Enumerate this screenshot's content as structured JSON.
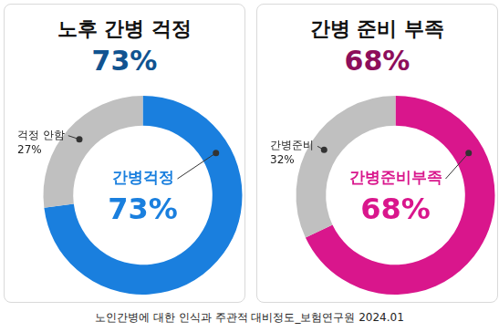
{
  "chart_data": [
    {
      "type": "doughnut",
      "title": "노후 간병 걱정",
      "subtitle": "73%",
      "categories": [
        "간병걱정",
        "걱정 안함"
      ],
      "values": [
        73,
        27
      ],
      "value_labels": [
        "73%",
        "27%"
      ],
      "colors": [
        "#1a7fde",
        "#c0c0c0"
      ],
      "data_labels": true,
      "legend": "none"
    },
    {
      "type": "doughnut",
      "title": "간병 준비 부족",
      "subtitle": "68%",
      "categories": [
        "간병준비부족",
        "간병준비"
      ],
      "values": [
        68,
        32
      ],
      "value_labels": [
        "68%",
        "32%"
      ],
      "colors": [
        "#d9168c",
        "#c0c0c0"
      ],
      "data_labels": true,
      "legend": "none"
    }
  ],
  "source": "노인간병에 대한 인식과 주관적 대비정도_보험연구원 2024.01"
}
